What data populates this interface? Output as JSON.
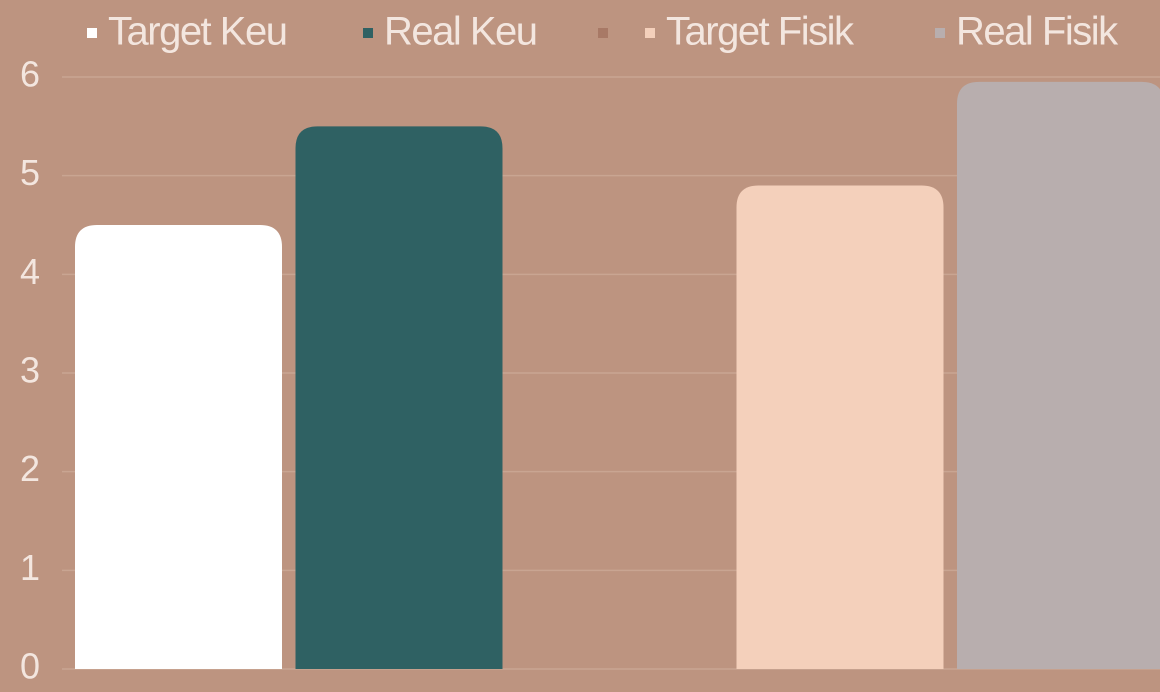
{
  "chart_data": {
    "type": "bar",
    "categories": [
      null
    ],
    "series": [
      {
        "name": "Target Keu",
        "color": "#ffffff",
        "values": [
          4.5
        ]
      },
      {
        "name": "Real Keu",
        "color": "#2f6163",
        "values": [
          5.5
        ]
      },
      {
        "name": null,
        "color": "#a87966",
        "values": [
          null
        ]
      },
      {
        "name": "Target Fisik",
        "color": "#f4d0bb",
        "values": [
          4.9
        ]
      },
      {
        "name": "Real Fisik",
        "color": "#b8aeae",
        "values": [
          5.95
        ]
      }
    ],
    "ylim": [
      0,
      6
    ],
    "yticks": [
      0,
      1,
      2,
      3,
      4,
      5,
      6
    ],
    "grid": true,
    "legend": "top"
  }
}
